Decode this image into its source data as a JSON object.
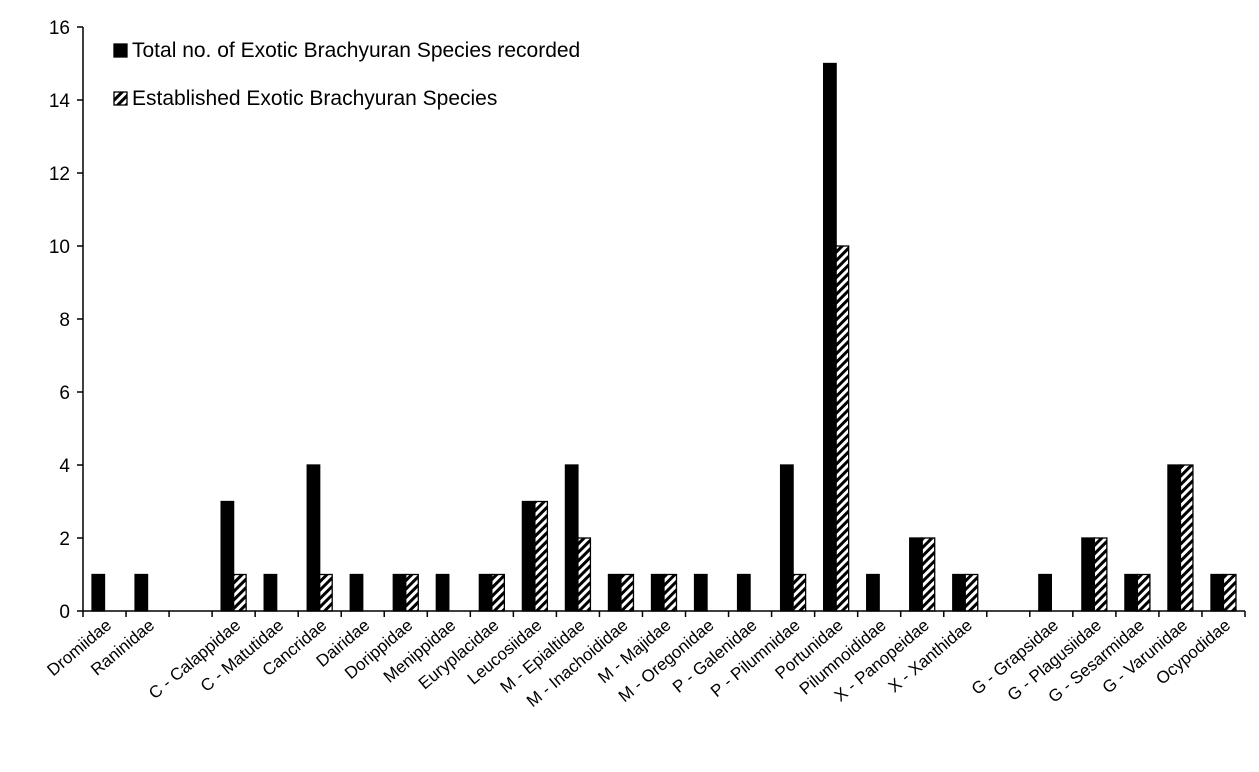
{
  "chart_data": {
    "type": "bar",
    "title": "",
    "xlabel": "",
    "ylabel": "",
    "ylim": [
      0,
      16
    ],
    "yticks": [
      0,
      2,
      4,
      6,
      8,
      10,
      12,
      14,
      16
    ],
    "grid": false,
    "legend_position": "top-left",
    "categories": [
      "Dromiidae",
      "Raninidae",
      "",
      "C - Calappidae",
      "C - Matutidae",
      "Cancridae",
      "Dairidae",
      "Dorippidae",
      "Menippidae",
      "Euryplacidae",
      "Leucosiidae",
      "M - Epialtidae",
      "M - Inachoididae",
      "M - Majidae",
      "M - Oregonidae",
      "P - Galenidae",
      "P - Pilumnidae",
      "Portunidae",
      "Pilumnoididae",
      "X - Panopeidae",
      "X - Xanthidae",
      "",
      "G - Grapsidae",
      "G - Plagusiidae",
      "G - Sesarmidae",
      "G - Varunidae",
      "Ocypodidae"
    ],
    "series": [
      {
        "name": "Total no. of Exotic Brachyuran Species recorded",
        "fill": "#000000",
        "values": [
          1,
          1,
          0,
          3,
          1,
          4,
          1,
          1,
          1,
          1,
          3,
          4,
          1,
          1,
          1,
          1,
          4,
          15,
          1,
          2,
          1,
          0,
          1,
          2,
          1,
          4,
          1
        ]
      },
      {
        "name": "Established Exotic Brachyuran Species",
        "fill": "hatched",
        "values": [
          0,
          0,
          0,
          1,
          0,
          1,
          0,
          1,
          0,
          1,
          3,
          2,
          1,
          1,
          0,
          0,
          1,
          10,
          0,
          2,
          1,
          0,
          0,
          2,
          1,
          4,
          1
        ]
      }
    ]
  }
}
